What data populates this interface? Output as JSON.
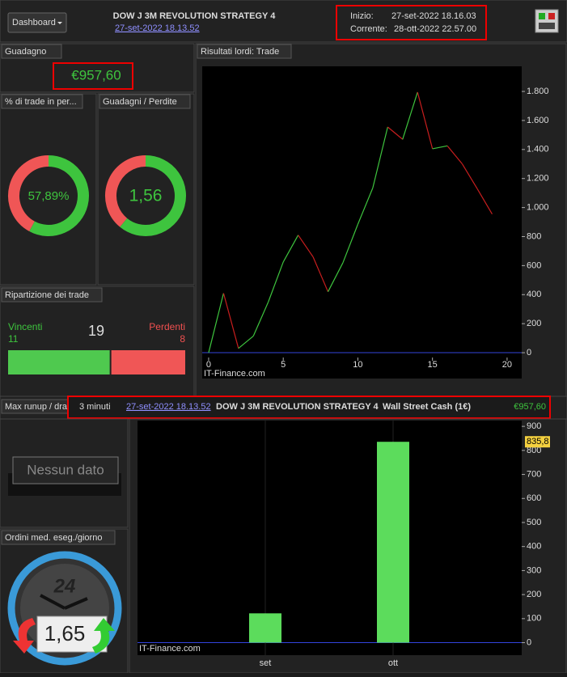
{
  "header": {
    "button": "Dashboard",
    "title": "DOW J 3M REVOLUTION STRATEGY 4",
    "date_link": "27-set-2022 18.13.52",
    "start_label": "Inizio:",
    "start": "27-set-2022 18.16.03",
    "current_label": "Corrente:",
    "current": "28-ott-2022 22.57.00"
  },
  "gain": {
    "title": "Guadagno",
    "label": "€957,60"
  },
  "win_rate": {
    "title": "% di trade in per...",
    "value": 57.89,
    "label": "57,89%"
  },
  "profit_loss": {
    "title": "Guadagni / Perdite",
    "value": 1.56,
    "label": "1,56"
  },
  "trades": {
    "title": "Ripartizione dei trade",
    "winners_label": "Vincenti",
    "winners": 11,
    "total": 19,
    "losers_label": "Perdenti",
    "losers": 8
  },
  "info_bar": {
    "timeframe": "3 minuti",
    "date_link": "27-set-2022 18.13.52",
    "strategy": "DOW J 3M REVOLUTION STRATEGY 4",
    "instrument": "Wall Street Cash (1€)",
    "gain": "€957,60"
  },
  "runup": {
    "title": "Max runup / dra",
    "empty": "Nessun dato"
  },
  "orders": {
    "title": "Ordini med. eseg./giorno",
    "gauge_label": "24",
    "value": "1,65"
  },
  "chart_data": [
    {
      "type": "line",
      "title": "Risultati lordi: Trade",
      "x": [
        0,
        1,
        2,
        3,
        4,
        5,
        6,
        7,
        8,
        9,
        10,
        11,
        12,
        13,
        14,
        15,
        16,
        17,
        18,
        19
      ],
      "values": [
        0,
        410,
        30,
        115,
        350,
        625,
        810,
        660,
        420,
        620,
        885,
        1135,
        1555,
        1470,
        1795,
        1405,
        1425,
        1300,
        1130,
        955
      ],
      "up_color": "#3ec43e",
      "down_color": "#c81e1e",
      "xlim": [
        -0.43,
        20.98
      ],
      "xticks": [
        0,
        5,
        10,
        15,
        20
      ],
      "ylim": [
        -178,
        1973
      ],
      "yticks": [
        0,
        200,
        400,
        600,
        800,
        {
          "value": 1000,
          "label": "1.000"
        },
        {
          "value": 1200,
          "label": "1.200"
        },
        {
          "value": 1400,
          "label": "1.400"
        },
        {
          "value": 1600,
          "label": "1.600"
        },
        {
          "value": 1800,
          "label": "1.800"
        }
      ],
      "watermark": "IT-Finance.com"
    },
    {
      "type": "bar",
      "categories": [
        "set",
        "ott"
      ],
      "values": [
        122,
        835.8
      ],
      "value_labels": [
        null,
        "835,8"
      ],
      "color": "#5cdc5c",
      "ylim": [
        -52,
        924
      ],
      "yticks": [
        0,
        100,
        200,
        300,
        400,
        500,
        600,
        700,
        800,
        900
      ],
      "watermark": "IT-Finance.com"
    }
  ]
}
